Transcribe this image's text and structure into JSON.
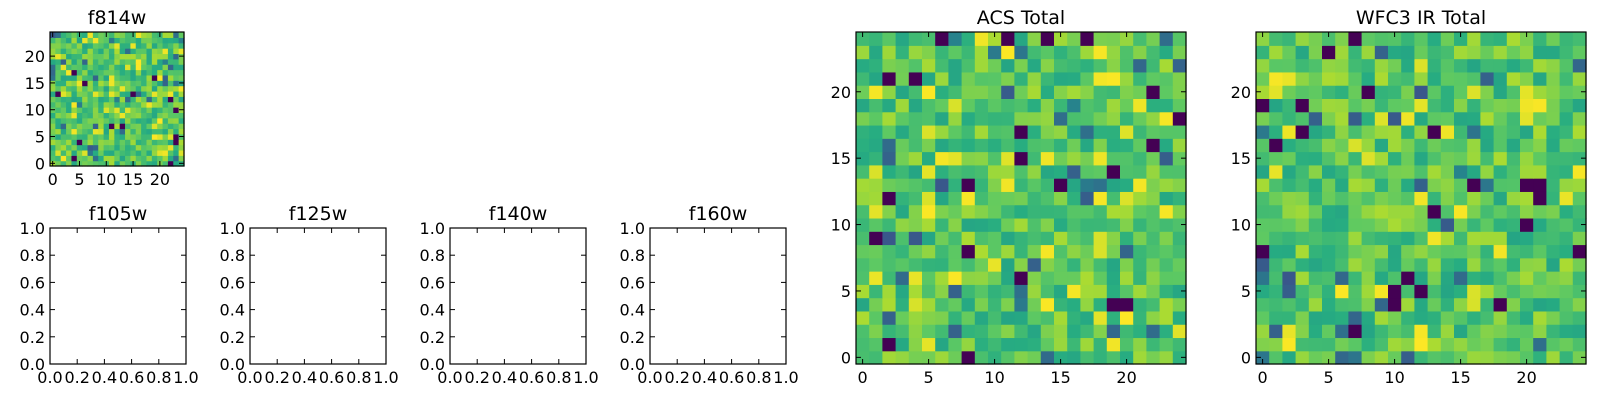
{
  "chart_data": [
    {
      "type": "heatmap",
      "title": "f814w",
      "xticks": [
        "0",
        "5",
        "10",
        "15",
        "20"
      ],
      "yticks": [
        "0",
        "5",
        "10",
        "15",
        "20"
      ],
      "xlim": [
        -0.5,
        24.5
      ],
      "ylim": [
        -0.5,
        24.5
      ],
      "grid_size": [
        25,
        25
      ],
      "colormap": "viridis",
      "cells": "25x25 pixel image; individual values are not printed and are rendered as a viridis colour field"
    },
    {
      "type": "scatter",
      "title": "f105w",
      "xticks": [
        "0.0",
        "0.2",
        "0.4",
        "0.6",
        "0.8",
        "1.0"
      ],
      "yticks": [
        "0.0",
        "0.2",
        "0.4",
        "0.6",
        "0.8",
        "1.0"
      ],
      "xlim": [
        0,
        1
      ],
      "ylim": [
        0,
        1
      ],
      "series": []
    },
    {
      "type": "scatter",
      "title": "f125w",
      "xticks": [
        "0.0",
        "0.2",
        "0.4",
        "0.6",
        "0.8",
        "1.0"
      ],
      "yticks": [
        "0.0",
        "0.2",
        "0.4",
        "0.6",
        "0.8",
        "1.0"
      ],
      "xlim": [
        0,
        1
      ],
      "ylim": [
        0,
        1
      ],
      "series": []
    },
    {
      "type": "scatter",
      "title": "f140w",
      "xticks": [
        "0.0",
        "0.2",
        "0.4",
        "0.6",
        "0.8",
        "1.0"
      ],
      "yticks": [
        "0.0",
        "0.2",
        "0.4",
        "0.6",
        "0.8",
        "1.0"
      ],
      "xlim": [
        0,
        1
      ],
      "ylim": [
        0,
        1
      ],
      "series": []
    },
    {
      "type": "scatter",
      "title": "f160w",
      "xticks": [
        "0.0",
        "0.2",
        "0.4",
        "0.6",
        "0.8",
        "1.0"
      ],
      "yticks": [
        "0.0",
        "0.2",
        "0.4",
        "0.6",
        "0.8",
        "1.0"
      ],
      "xlim": [
        0,
        1
      ],
      "ylim": [
        0,
        1
      ],
      "series": []
    },
    {
      "type": "heatmap",
      "title": "ACS Total",
      "xticks": [
        "0",
        "5",
        "10",
        "15",
        "20"
      ],
      "yticks": [
        "0",
        "5",
        "10",
        "15",
        "20"
      ],
      "xlim": [
        -0.5,
        24.5
      ],
      "ylim": [
        -0.5,
        24.5
      ],
      "grid_size": [
        25,
        25
      ],
      "colormap": "viridis",
      "cells": "25x25 pixel image; individual values are not printed and are rendered as a viridis colour field"
    },
    {
      "type": "heatmap",
      "title": "WFC3 IR Total",
      "xticks": [
        "0",
        "5",
        "10",
        "15",
        "20"
      ],
      "yticks": [
        "0",
        "5",
        "10",
        "15",
        "20"
      ],
      "xlim": [
        -0.5,
        24.5
      ],
      "ylim": [
        -0.5,
        24.5
      ],
      "grid_size": [
        25,
        25
      ],
      "colormap": "viridis",
      "cells": "25x25 pixel image; individual values are not printed and are rendered as a viridis colour field"
    }
  ]
}
